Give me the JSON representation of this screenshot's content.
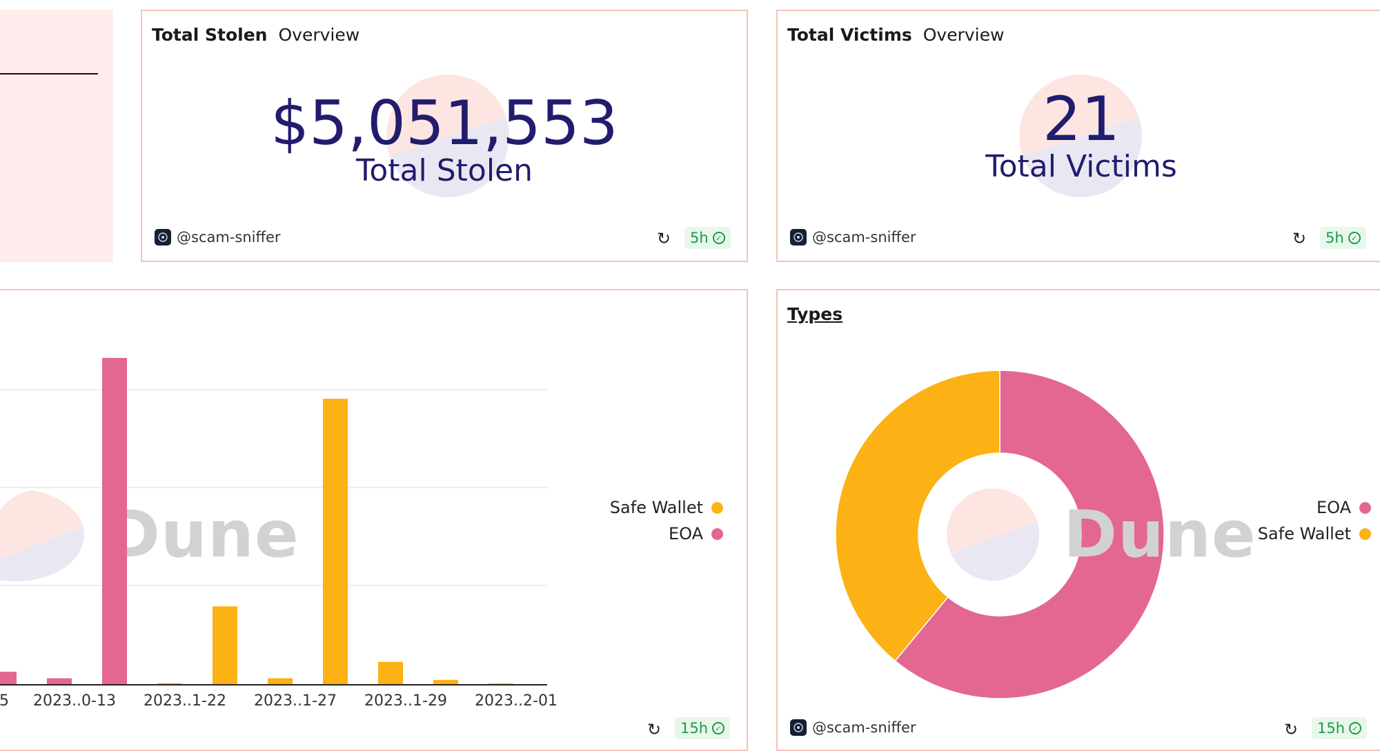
{
  "colors": {
    "safe_wallet": "#fcb114",
    "eoa": "#e36792",
    "counter_text": "#221c6e",
    "panel_border": "#f4c2b8",
    "fresh_badge_bg": "#e7f7ea",
    "fresh_badge_text": "#1f9b48"
  },
  "total_stolen": {
    "title": "Total Stolen",
    "tab": "Overview",
    "value": "$5,051,553",
    "label": "Total Stolen",
    "author": "@scam-sniffer",
    "refresh_icon": "refresh-icon",
    "freshness": "5h"
  },
  "total_victims": {
    "title": "Total Victims",
    "tab": "Overview",
    "value": "21",
    "label": "Total Victims",
    "author": "@scam-sniffer",
    "refresh_icon": "refresh-icon",
    "freshness": "5h"
  },
  "bar_panel": {
    "watermark": "Dune",
    "legend": [
      "Safe Wallet",
      "EOA"
    ],
    "refresh_icon": "refresh-icon",
    "freshness": "15h"
  },
  "types_panel": {
    "title": "Types",
    "watermark": "Dune",
    "legend": [
      "EOA",
      "Safe Wallet"
    ],
    "author": "@scam-sniffer",
    "refresh_icon": "refresh-icon",
    "freshness": "15h"
  },
  "chart_data": [
    {
      "type": "bar",
      "x_tick_labels": [
        "5",
        "2023..0-13",
        "2023..1-22",
        "2023..1-27",
        "2023..1-29",
        "2023..2-01"
      ],
      "series": [
        {
          "name": "EOA",
          "values": [
            0.04,
            0.02,
            1.0,
            0,
            0,
            0,
            0,
            0,
            0,
            0
          ]
        },
        {
          "name": "Safe Wallet",
          "values": [
            0,
            0,
            0,
            0.005,
            0.24,
            0.02,
            0.875,
            0.07,
            0.015,
            0.004
          ]
        }
      ],
      "note_values": "relative heights (0-1); y-axis tick labels are not visible",
      "grid": true,
      "legend_position": "right"
    },
    {
      "type": "pie",
      "title": "Types",
      "donut": true,
      "slices": [
        {
          "name": "EOA",
          "value": 0.61
        },
        {
          "name": "Safe Wallet",
          "value": 0.39
        }
      ],
      "legend_position": "right"
    }
  ]
}
